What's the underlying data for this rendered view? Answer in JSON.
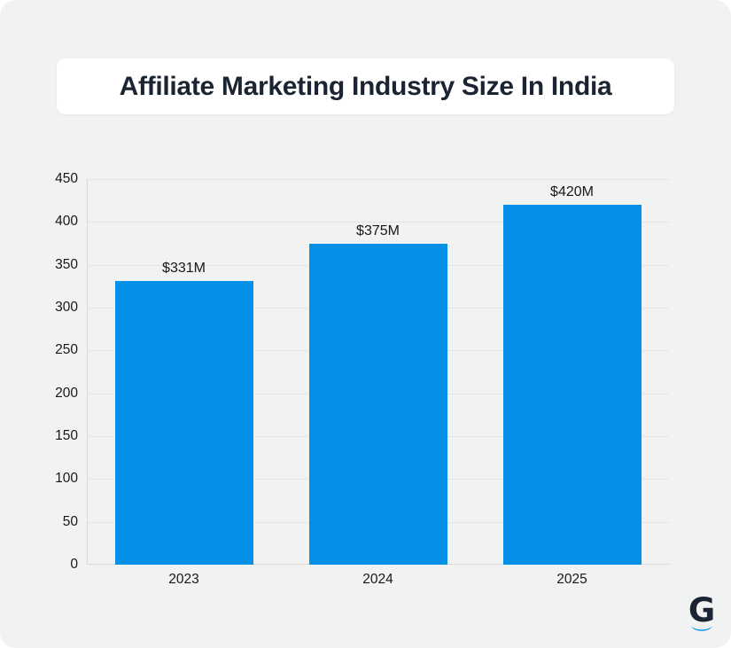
{
  "title": "Affiliate Marketing Industry Size In India",
  "logo": {
    "letter": "G"
  },
  "colors": {
    "canvas_bg": "#f1f2f2",
    "card_bg": "#ffffff",
    "navy": "#1b2433",
    "bar_blue": "#0590e7",
    "gridline": "#e4e4e4",
    "axis": "#d9d9d9",
    "tick_text": "#16181c"
  },
  "chart_data": {
    "type": "bar",
    "title": "Affiliate Marketing Industry Size In India",
    "categories": [
      "2023",
      "2024",
      "2025"
    ],
    "values": [
      331,
      375,
      420
    ],
    "value_labels": [
      "$331M",
      "$375M",
      "$420M"
    ],
    "xlabel": "",
    "ylabel": "",
    "ylim": [
      0,
      450
    ],
    "ytick_step": 50,
    "yticks": [
      0,
      50,
      100,
      150,
      200,
      250,
      300,
      350,
      400,
      450
    ],
    "grid": true,
    "legend": "none",
    "bar_color": "#0590e7"
  }
}
